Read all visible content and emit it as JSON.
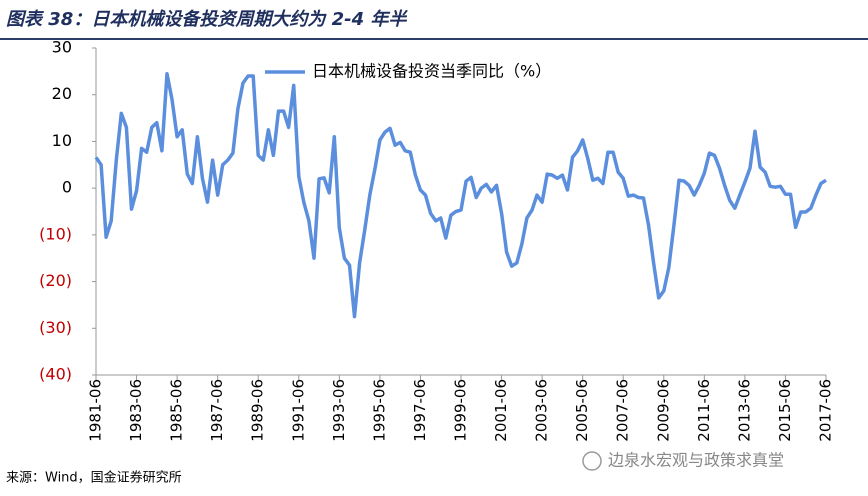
{
  "chart_data": {
    "type": "line",
    "title": "图表 38：日本机械设备投资周期大约为 2-4 年半",
    "source": "来源：Wind，国金证券研究所",
    "watermark": "边泉水宏观与政策求真堂",
    "categories": [
      "1981-06",
      null,
      null,
      null,
      null,
      null,
      null,
      null,
      "1983-06",
      null,
      null,
      null,
      null,
      null,
      null,
      null,
      "1985-06",
      null,
      null,
      null,
      null,
      null,
      null,
      null,
      "1987-06",
      null,
      null,
      null,
      null,
      null,
      null,
      null,
      "1989-06",
      null,
      null,
      null,
      null,
      null,
      null,
      null,
      "1991-06",
      null,
      null,
      null,
      null,
      null,
      null,
      null,
      "1993-06",
      null,
      null,
      null,
      null,
      null,
      null,
      null,
      "1995-06",
      null,
      null,
      null,
      null,
      null,
      null,
      null,
      "1997-06",
      null,
      null,
      null,
      null,
      null,
      null,
      null,
      "1999-06",
      null,
      null,
      null,
      null,
      null,
      null,
      null,
      "2001-06",
      null,
      null,
      null,
      null,
      null,
      null,
      null,
      "2003-06",
      null,
      null,
      null,
      null,
      null,
      null,
      null,
      "2005-06",
      null,
      null,
      null,
      null,
      null,
      null,
      null,
      "2007-06",
      null,
      null,
      null,
      null,
      null,
      null,
      null,
      "2009-06",
      null,
      null,
      null,
      null,
      null,
      null,
      null,
      "2011-06",
      null,
      null,
      null,
      null,
      null,
      null,
      null,
      "2013-06",
      null,
      null,
      null,
      null,
      null,
      null,
      null,
      "2015-06",
      null,
      null,
      null,
      null,
      null,
      null,
      null,
      "2017-06"
    ],
    "series": [
      {
        "name": "日本机械设备投资当季同比（%）",
        "color": "#5b8fdd",
        "values": [
          6.6,
          5,
          -10.5,
          -7,
          6,
          16,
          13,
          -4.5,
          -0.5,
          8.5,
          7.7,
          13,
          14,
          8,
          24.5,
          19,
          11,
          12.5,
          3,
          1,
          11,
          2,
          -3,
          6,
          -1.5,
          5,
          6,
          7.5,
          17,
          22.5,
          24,
          24,
          7,
          6,
          12.5,
          7,
          16.5,
          16.5,
          13,
          22,
          2.5,
          -3,
          -7,
          -15,
          2,
          2.2,
          -1,
          11,
          -8.5,
          -15,
          -16.5,
          -27.5,
          -16,
          -9,
          -1.5,
          4,
          10.3,
          12,
          12.8,
          9.2,
          9.8,
          8,
          7.7,
          2.8,
          -0.4,
          -1.5,
          -5.4,
          -7,
          -6.4,
          -10.7,
          -5.8,
          -5,
          -4.7,
          1.5,
          2.3,
          -2,
          0,
          0.8,
          -0.8,
          0.6,
          -5.4,
          -13.7,
          -16.7,
          -16,
          -12,
          -6.4,
          -4.7,
          -1.5,
          -3,
          3,
          2.8,
          2.1,
          2.8,
          -0.4,
          6.6,
          8,
          10.3,
          6.4,
          1.7,
          2.1,
          1,
          7.7,
          7.7,
          3.4,
          2.1,
          -1.7,
          -1.5,
          -2,
          -2.1,
          -8,
          -16,
          -23.5,
          -22,
          -17,
          -8,
          1.7,
          1.5,
          0.6,
          -1.5,
          0.6,
          3.2,
          7.5,
          7,
          4.3,
          0.6,
          -2.6,
          -4.3,
          -1.5,
          1.3,
          4.3,
          12.2,
          4.5,
          3.4,
          0.4,
          0.2,
          0.4,
          -1.3,
          -1.3,
          -8.4,
          -5.1,
          -5.1,
          -4.3,
          -1.5,
          1,
          1.7
        ]
      }
    ],
    "ylim": [
      -40,
      30
    ],
    "yticks": [
      30,
      20,
      10,
      0,
      {
        "value": -10,
        "label": "(10)"
      },
      {
        "value": -20,
        "label": "(20)"
      },
      {
        "value": -30,
        "label": "(30)"
      },
      {
        "value": -40,
        "label": "(40)"
      }
    ],
    "negative_label_color": "#c00000",
    "grid": false,
    "legend": "top"
  }
}
